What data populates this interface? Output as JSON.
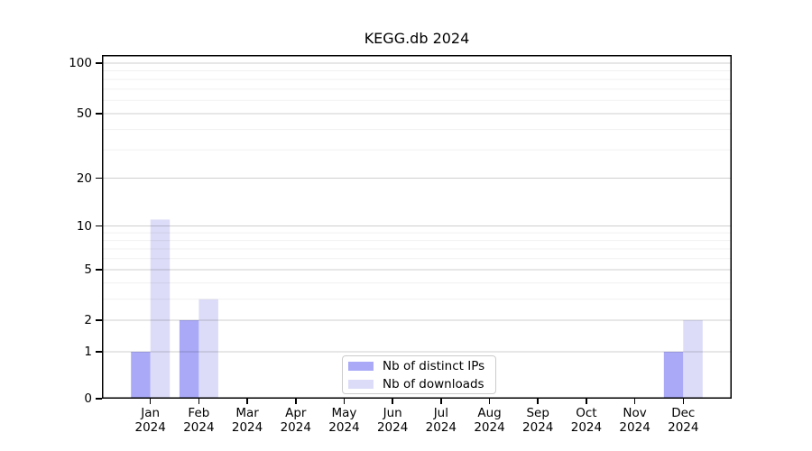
{
  "chart_data": {
    "type": "bar",
    "title": "KEGG.db 2024",
    "categories": [
      {
        "label": "Jan",
        "sublabel": "2024"
      },
      {
        "label": "Feb",
        "sublabel": "2024"
      },
      {
        "label": "Mar",
        "sublabel": "2024"
      },
      {
        "label": "Apr",
        "sublabel": "2024"
      },
      {
        "label": "May",
        "sublabel": "2024"
      },
      {
        "label": "Jun",
        "sublabel": "2024"
      },
      {
        "label": "Jul",
        "sublabel": "2024"
      },
      {
        "label": "Aug",
        "sublabel": "2024"
      },
      {
        "label": "Sep",
        "sublabel": "2024"
      },
      {
        "label": "Oct",
        "sublabel": "2024"
      },
      {
        "label": "Nov",
        "sublabel": "2024"
      },
      {
        "label": "Dec",
        "sublabel": "2024"
      }
    ],
    "series": [
      {
        "name": "Nb of distinct IPs",
        "color": "#a9a9f7",
        "values": [
          1,
          2,
          0,
          0,
          0,
          0,
          0,
          0,
          0,
          0,
          0,
          1
        ]
      },
      {
        "name": "Nb of downloads",
        "color": "#dcdcf8",
        "values": [
          11,
          3,
          0,
          0,
          0,
          0,
          0,
          0,
          0,
          0,
          0,
          2
        ]
      }
    ],
    "y_axis": {
      "scale": "log1p",
      "ticks": [
        0,
        1,
        2,
        5,
        10,
        20,
        50,
        100
      ],
      "minor_gridlines": [
        3,
        4,
        6,
        7,
        8,
        9,
        30,
        40,
        60,
        70,
        80,
        90
      ],
      "ylim": [
        0,
        113
      ]
    },
    "xlabel": "",
    "ylabel": "",
    "grid": "horizontal",
    "legend_position": "bottom-center",
    "colors": {
      "major_grid": "rgba(0,0,0,0.19)",
      "minor_grid": "rgba(0,0,0,0.06)",
      "spine": "#000000"
    }
  }
}
